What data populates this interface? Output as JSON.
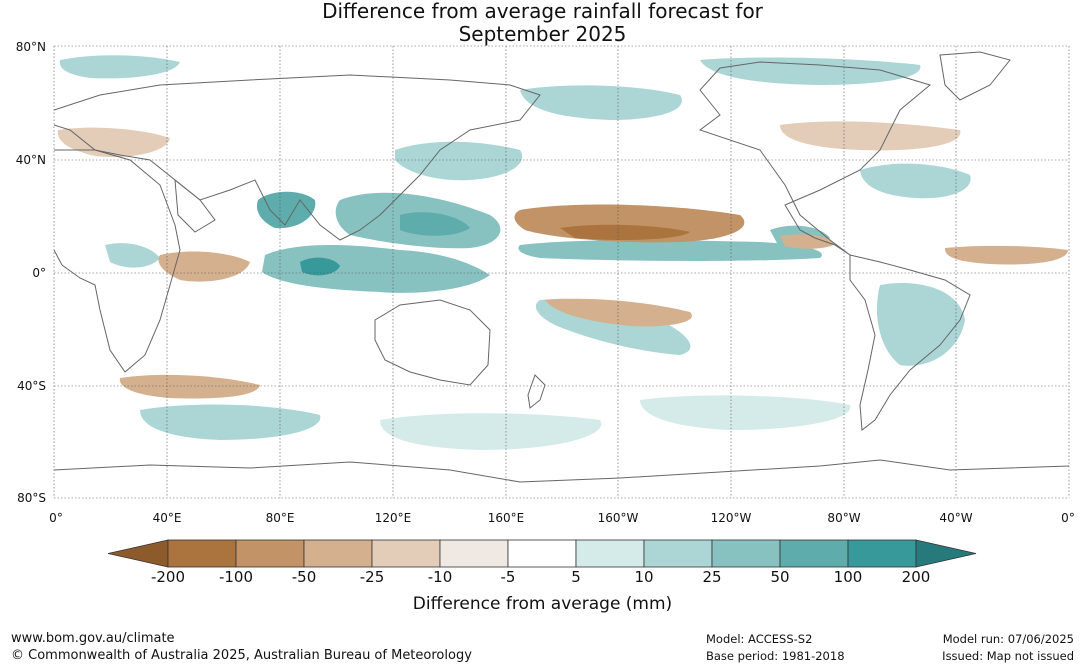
{
  "title_line1": "Difference from average rainfall forecast for",
  "title_line2": "September 2025",
  "lat_labels": [
    "80°N",
    "40°N",
    "0°",
    "40°S",
    "80°S"
  ],
  "lon_labels": [
    "0°",
    "40°E",
    "80°E",
    "120°E",
    "160°E",
    "160°W",
    "120°W",
    "80°W",
    "40°W",
    "0°"
  ],
  "colorbar": {
    "labels": [
      "-200",
      "-100",
      "-50",
      "-25",
      "-10",
      "-5",
      "5",
      "10",
      "25",
      "50",
      "100",
      "200"
    ],
    "colors": [
      "#8c5a2b",
      "#ab743f",
      "#c19366",
      "#d4b08e",
      "#e3cdb9",
      "#f0e9e3",
      "#ffffff",
      "#d5ebea",
      "#acd6d5",
      "#87c2c1",
      "#5eacab",
      "#37999a",
      "#277a7b"
    ],
    "title": "Difference from average (mm)"
  },
  "footer": {
    "url": "www.bom.gov.au/climate",
    "copyright": "© Commonwealth of Australia 2025, Australian Bureau of Meteorology",
    "model": "Model: ACCESS-S2",
    "base_period": "Base period: 1981-2018",
    "model_run": "Model run: 07/06/2025",
    "issued": "Issued: Map not issued"
  }
}
